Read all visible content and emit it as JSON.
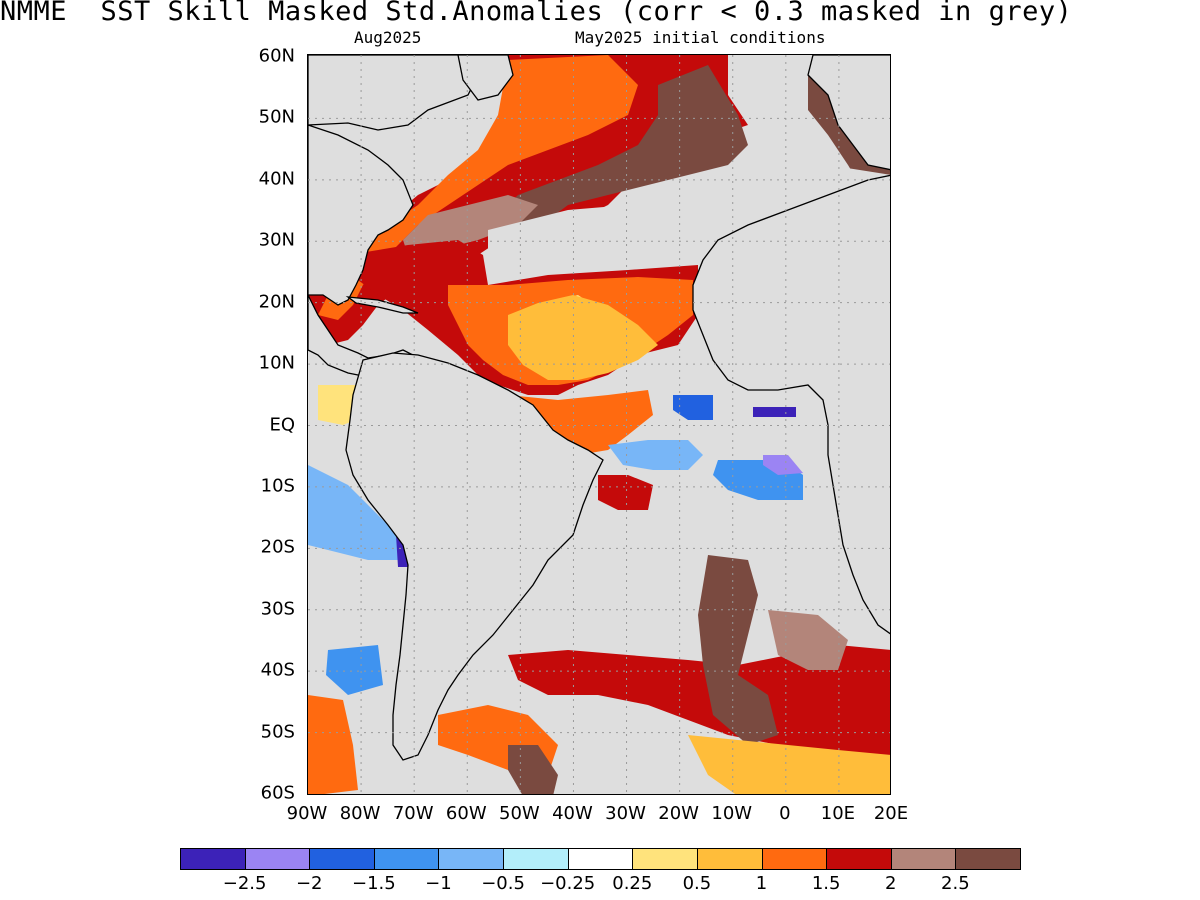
{
  "title": "NMME  SST Skill Masked Std.Anomalies (corr < 0.3 masked in grey)",
  "subtitle_left": "Aug2025",
  "subtitle_right": "May2025 initial conditions",
  "lat_labels": [
    "60N",
    "50N",
    "40N",
    "30N",
    "20N",
    "10N",
    "EQ",
    "10S",
    "20S",
    "30S",
    "40S",
    "50S",
    "60S"
  ],
  "lon_labels": [
    "90W",
    "80W",
    "70W",
    "60W",
    "50W",
    "40W",
    "30W",
    "20W",
    "10W",
    "0",
    "10E",
    "20E"
  ],
  "colorbar": {
    "colors": [
      "#3c22b8",
      "#9b84f3",
      "#2161e0",
      "#3f93f0",
      "#78b6f7",
      "#b3eefa",
      "#ffffff",
      "#ffe37c",
      "#ffbd3a",
      "#ff6a10",
      "#c40a0a",
      "#b3857a",
      "#7a4a40"
    ],
    "tick_labels": [
      "−2.5",
      "−2",
      "−1.5",
      "−1",
      "−0.5",
      "−0.25",
      "0.25",
      "0.5",
      "1",
      "1.5",
      "2",
      "2.5"
    ]
  },
  "map_colors": {
    "ocean_masked": "#dedede",
    "land": "#dedede",
    "coastline": "#000000",
    "grid": "#9a9a9a"
  }
}
